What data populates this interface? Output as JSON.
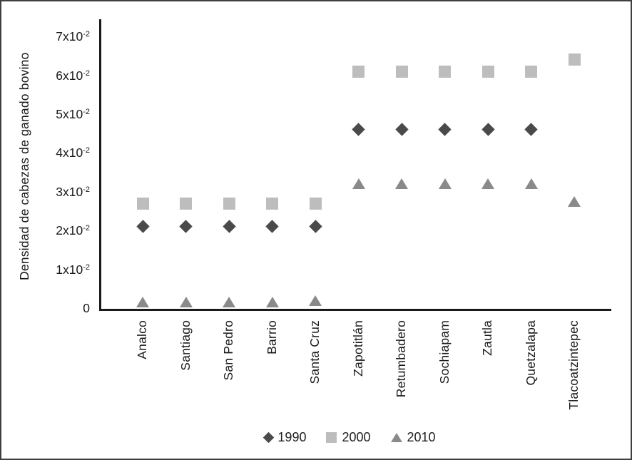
{
  "frame": {
    "background": "#ffffff",
    "border_color": "#3f3f3f"
  },
  "chart_data": {
    "type": "scatter",
    "title": "",
    "xlabel": "",
    "ylabel": "Densidad de cabezas de ganado bovino",
    "categories": [
      "Analco",
      "Santiago",
      "San Pedro",
      "Barrio",
      "Santa Cruz",
      "Zapotitlán",
      "Retumbadero",
      "Sochiapam",
      "Zautla",
      "Quetzalapa",
      "Tlacoatzintepec"
    ],
    "series": [
      {
        "name": "1990",
        "marker": "diamond",
        "color": "#4a4a4a",
        "values": [
          0.021,
          0.021,
          0.021,
          0.021,
          0.021,
          0.046,
          0.046,
          0.046,
          0.046,
          0.046,
          null
        ]
      },
      {
        "name": "2000",
        "marker": "square",
        "color": "#bdbdbd",
        "values": [
          0.027,
          0.027,
          0.027,
          0.027,
          0.027,
          0.061,
          0.061,
          0.061,
          0.061,
          0.061,
          0.064
        ]
      },
      {
        "name": "2010",
        "marker": "triangle",
        "color": "#8a8a8a",
        "values": [
          0.0015,
          0.0015,
          0.0015,
          0.0015,
          0.002,
          0.032,
          0.032,
          0.032,
          0.032,
          0.032,
          0.0275
        ]
      }
    ],
    "ylim": [
      0,
      0.0745
    ],
    "yticks": [
      {
        "value": 0,
        "label": "0",
        "sup": ""
      },
      {
        "value": 0.01,
        "label": "1x10",
        "sup": "-2"
      },
      {
        "value": 0.02,
        "label": "2x10",
        "sup": "-2"
      },
      {
        "value": 0.03,
        "label": "3x10",
        "sup": "-2"
      },
      {
        "value": 0.04,
        "label": "4x10",
        "sup": "-2"
      },
      {
        "value": 0.05,
        "label": "5x10",
        "sup": "-2"
      },
      {
        "value": 0.06,
        "label": "6x10",
        "sup": "-2"
      },
      {
        "value": 0.07,
        "label": "7x10",
        "sup": "-2"
      }
    ],
    "grid": false,
    "legend_position": "bottom"
  }
}
